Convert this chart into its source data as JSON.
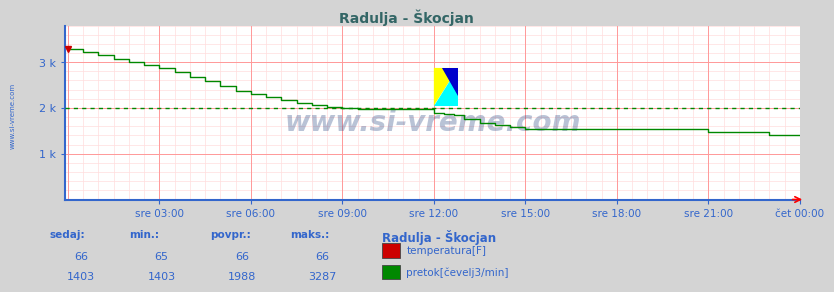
{
  "title": "Radulja - Škocjan",
  "bg_color": "#d4d4d4",
  "plot_bg_color": "#ffffff",
  "grid_major_color": "#ff9999",
  "grid_minor_color": "#ffdddd",
  "axis_color": "#3366cc",
  "x_label_color": "#3366cc",
  "y_label_color": "#3366cc",
  "title_color": "#336666",
  "watermark": "www.si-vreme.com",
  "watermark_color": "#1a3a7a",
  "sidebar_text": "www.si-vreme.com",
  "sidebar_color": "#3366cc",
  "x_ticks_labels": [
    "sre 03:00",
    "sre 06:00",
    "sre 09:00",
    "sre 12:00",
    "sre 15:00",
    "sre 18:00",
    "sre 21:00",
    "čet 00:00"
  ],
  "y_ticks": [
    1000,
    2000,
    3000
  ],
  "y_tick_labels": [
    "1 k",
    "2 k",
    "3 k"
  ],
  "ylim": [
    0,
    3800
  ],
  "xlim_n": 288,
  "temperature_color": "#cc0000",
  "flow_color": "#008800",
  "flow_dotted_color": "#008800",
  "temp_sedaj": 66,
  "temp_min": 65,
  "temp_povpr": 66,
  "temp_maks": 66,
  "flow_sedaj": 1403,
  "flow_min": 1403,
  "flow_povpr": 1988,
  "flow_maks": 3287,
  "legend_title": "Radulja - Škocjan",
  "legend_items": [
    "temperatura[F]",
    "pretok[čevelj3/min]"
  ],
  "legend_colors": [
    "#cc0000",
    "#008800"
  ],
  "bottom_labels": [
    "sedaj:",
    "min.:",
    "povpr.:",
    "maks.:"
  ],
  "bottom_label_color": "#3366cc",
  "bottom_header_color": "#3366cc"
}
